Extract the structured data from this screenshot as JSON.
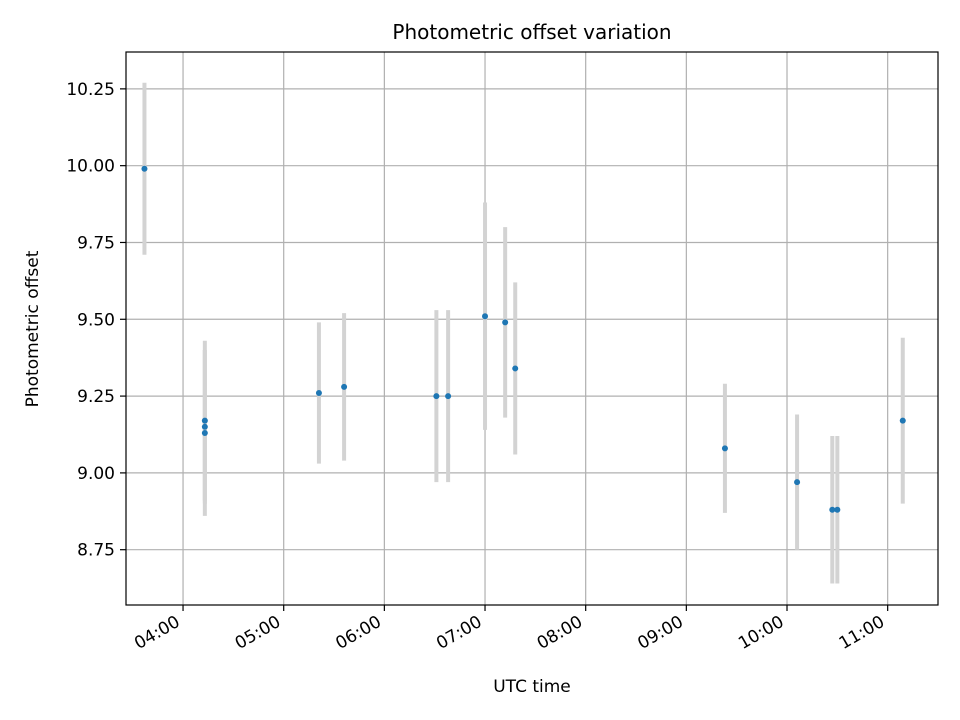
{
  "chart_data": {
    "type": "scatter",
    "title": "Photometric offset variation",
    "xlabel": "UTC time",
    "ylabel": "Photometric offset",
    "xlim": [
      "03:26",
      "11:30"
    ],
    "ylim": [
      8.57,
      10.37
    ],
    "grid": true,
    "x_ticks": [
      "04:00",
      "05:00",
      "06:00",
      "07:00",
      "08:00",
      "09:00",
      "10:00",
      "11:00"
    ],
    "y_ticks": [
      "8.75",
      "9.00",
      "9.25",
      "9.50",
      "9.75",
      "10.00",
      "10.25"
    ],
    "colors": {
      "points": "#1f77b4",
      "errorbars": "#d3d3d3",
      "grid": "#b0b0b0"
    },
    "series": [
      {
        "points": [
          {
            "x": "03:37",
            "y": 9.99,
            "err": 0.28
          },
          {
            "x": "04:13",
            "y": 9.13,
            "err": 0.27
          },
          {
            "x": "04:13",
            "y": 9.15,
            "err": 0.25
          },
          {
            "x": "04:13",
            "y": 9.17,
            "err": 0.26
          },
          {
            "x": "05:21",
            "y": 9.26,
            "err": 0.23
          },
          {
            "x": "05:36",
            "y": 9.28,
            "err": 0.24
          },
          {
            "x": "06:31",
            "y": 9.25,
            "err": 0.28
          },
          {
            "x": "06:38",
            "y": 9.25,
            "err": 0.28
          },
          {
            "x": "07:00",
            "y": 9.51,
            "err": 0.37
          },
          {
            "x": "07:12",
            "y": 9.49,
            "err": 0.31
          },
          {
            "x": "07:18",
            "y": 9.34,
            "err": 0.28
          },
          {
            "x": "09:23",
            "y": 9.08,
            "err": 0.21
          },
          {
            "x": "10:06",
            "y": 8.97,
            "err": 0.22
          },
          {
            "x": "10:27",
            "y": 8.88,
            "err": 0.24
          },
          {
            "x": "10:30",
            "y": 8.88,
            "err": 0.24
          },
          {
            "x": "11:09",
            "y": 9.17,
            "err": 0.27
          }
        ]
      }
    ]
  }
}
